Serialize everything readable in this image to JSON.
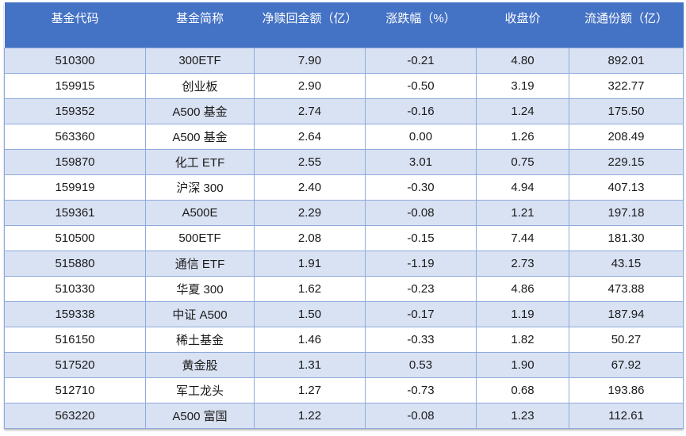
{
  "chart_data": {
    "type": "table",
    "columns": [
      "基金代码",
      "基金简称",
      "净赎回金额（亿）",
      "涨跌幅（%）",
      "收盘价",
      "流通份额（亿）"
    ],
    "rows": [
      [
        "510300",
        "300ETF",
        "7.90",
        "-0.21",
        "4.80",
        "892.01"
      ],
      [
        "159915",
        "创业板",
        "2.90",
        "-0.50",
        "3.19",
        "322.77"
      ],
      [
        "159352",
        "A500 基金",
        "2.74",
        "-0.16",
        "1.24",
        "175.50"
      ],
      [
        "563360",
        "A500 基金",
        "2.64",
        "0.00",
        "1.26",
        "208.49"
      ],
      [
        "159870",
        "化工 ETF",
        "2.55",
        "3.01",
        "0.75",
        "229.15"
      ],
      [
        "159919",
        "沪深 300",
        "2.40",
        "-0.30",
        "4.94",
        "407.13"
      ],
      [
        "159361",
        "A500E",
        "2.29",
        "-0.08",
        "1.21",
        "197.18"
      ],
      [
        "510500",
        "500ETF",
        "2.08",
        "-0.15",
        "7.44",
        "181.30"
      ],
      [
        "515880",
        "通信 ETF",
        "1.91",
        "-1.19",
        "2.73",
        "43.15"
      ],
      [
        "510330",
        "华夏 300",
        "1.62",
        "-0.23",
        "4.86",
        "473.88"
      ],
      [
        "159338",
        "中证 A500",
        "1.50",
        "-0.17",
        "1.19",
        "187.94"
      ],
      [
        "516150",
        "稀土基金",
        "1.46",
        "-0.33",
        "1.82",
        "50.27"
      ],
      [
        "517520",
        "黄金股",
        "1.31",
        "0.53",
        "1.90",
        "67.92"
      ],
      [
        "512710",
        "军工龙头",
        "1.27",
        "-0.73",
        "0.68",
        "193.86"
      ],
      [
        "563220",
        "A500 富国",
        "1.22",
        "-0.08",
        "1.23",
        "112.61"
      ]
    ]
  },
  "colors": {
    "header_bg": "#4472C4",
    "header_text": "#FFFFFF",
    "stripe_bg": "#D9E2F3",
    "row_bg": "#FFFFFF",
    "border": "#8EAADB",
    "text": "#1A1A1A"
  }
}
